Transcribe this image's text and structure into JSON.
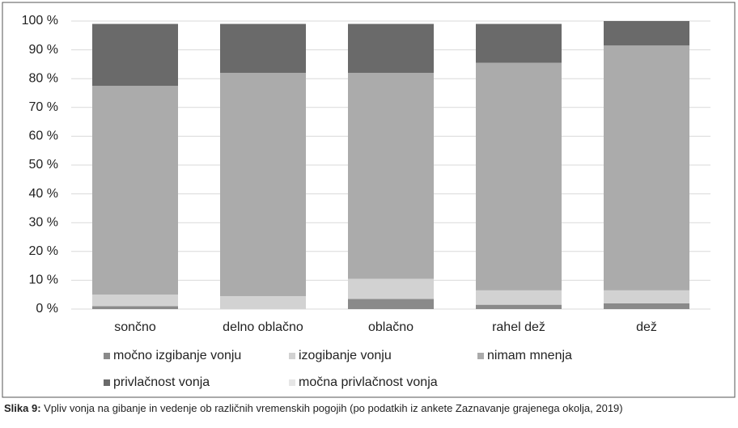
{
  "chart_data": {
    "type": "stacked_bar",
    "categories": [
      "sončno",
      "delno oblačno",
      "oblačno",
      "rahel dež",
      "dež"
    ],
    "series": [
      {
        "name": "močno izgibanje vonju",
        "color": "#8a8a8a",
        "values": [
          1,
          0,
          3.5,
          1.5,
          2
        ]
      },
      {
        "name": "izogibanje vonju",
        "color": "#d2d2d2",
        "values": [
          4,
          4.5,
          7,
          5,
          4.5
        ]
      },
      {
        "name": "nimam mnenja",
        "color": "#ababab",
        "values": [
          72.5,
          77.5,
          71.5,
          79,
          85
        ]
      },
      {
        "name": "privlačnost vonja",
        "color": "#6a6a6a",
        "values": [
          21.5,
          17,
          17,
          13.5,
          8.5
        ]
      },
      {
        "name": "močna privlačnost vonja",
        "color": "#e6e6e6",
        "values": [
          0,
          0,
          0,
          0,
          0
        ]
      }
    ],
    "ylim": [
      0,
      100
    ],
    "yticks": [
      {
        "value": 0,
        "label": "0 %"
      },
      {
        "value": 10,
        "label": "10 %"
      },
      {
        "value": 20,
        "label": "20 %"
      },
      {
        "value": 30,
        "label": "30 %"
      },
      {
        "value": 40,
        "label": "40 %"
      },
      {
        "value": 50,
        "label": "50 %"
      },
      {
        "value": 60,
        "label": "60 %"
      },
      {
        "value": 70,
        "label": "70 %"
      },
      {
        "value": 80,
        "label": "80 %"
      },
      {
        "value": 90,
        "label": "90 %"
      },
      {
        "value": 100,
        "label": "100 %"
      }
    ],
    "grid": true
  },
  "caption": {
    "label": "Slika 9:",
    "text": "Vpliv vonja na gibanje in vedenje ob različnih vremenskih pogojih (po podatkih iz ankete Zaznavanje grajenega okolja, 2019)"
  }
}
